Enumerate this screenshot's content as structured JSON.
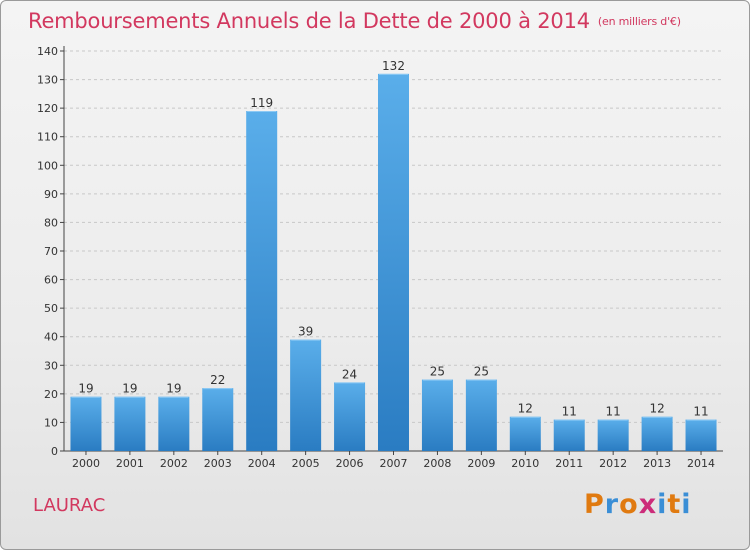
{
  "title": "Remboursements Annuels de la Dette de 2000 à 2014",
  "subtitle": "(en milliers d'€)",
  "commune": "LAURAC",
  "logo": {
    "text": "Proxiti",
    "colors": [
      "#e07a10",
      "#3a8ed6",
      "#e07a10",
      "#cc2c7a",
      "#3a8ed6",
      "#e07a10",
      "#3a8ed6"
    ]
  },
  "colors": {
    "title": "#d2385f",
    "bar_top": "#5aaeea",
    "bar_bottom": "#2a7cc2",
    "grid": "#c8c8c8"
  },
  "chart_data": {
    "type": "bar",
    "title": "Remboursements Annuels de la Dette de 2000 à 2014",
    "subtitle": "(en milliers d'€)",
    "categories": [
      "2000",
      "2001",
      "2002",
      "2003",
      "2004",
      "2005",
      "2006",
      "2007",
      "2008",
      "2009",
      "2010",
      "2011",
      "2012",
      "2013",
      "2014"
    ],
    "values": [
      19,
      19,
      19,
      22,
      119,
      39,
      24,
      132,
      25,
      25,
      12,
      11,
      11,
      12,
      11
    ],
    "ylim": [
      0,
      140
    ],
    "yticks": [
      0,
      10,
      20,
      30,
      40,
      50,
      60,
      70,
      80,
      90,
      100,
      110,
      120,
      130,
      140
    ],
    "grid": true,
    "xlabel": "",
    "ylabel": ""
  }
}
